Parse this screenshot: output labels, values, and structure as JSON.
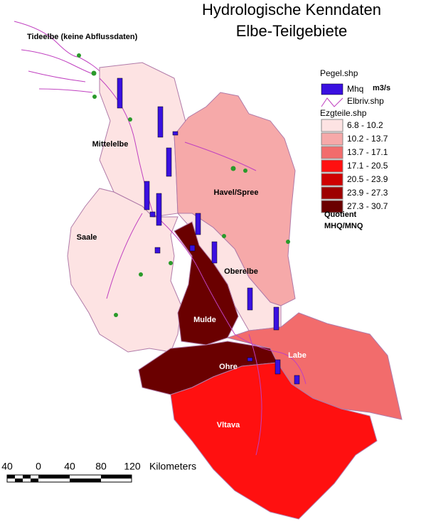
{
  "title": [
    "Hydrologische Kenndaten",
    "Elbe-Teilgebiete"
  ],
  "legend": {
    "gauges_layer": "Pegel.shp",
    "gauges_symbol": "Mhq",
    "gauges_unit": "m3/s",
    "rivers_layer": "Elbriv.shp",
    "areas_layer": "Ezgteile.shp",
    "classes": [
      {
        "label": "6.8 - 10.2",
        "color": "#fde3e3"
      },
      {
        "label": "10.2 - 13.7",
        "color": "#f6a9a9"
      },
      {
        "label": "13.7 - 17.1",
        "color": "#f26c6c"
      },
      {
        "label": "17.1 - 20.5",
        "color": "#ff1010"
      },
      {
        "label": "20.5 - 23.9",
        "color": "#cf0000"
      },
      {
        "label": "23.9 - 27.3",
        "color": "#9e0000"
      },
      {
        "label": "27.3 - 30.7",
        "color": "#6a0000"
      }
    ],
    "quantity": [
      "Quotient",
      "MHQ/MNQ"
    ]
  },
  "regions": [
    {
      "label": "Tideelbe  (keine Abflussdaten)"
    },
    {
      "label": "Mittelelbe",
      "color": "#fde3e3"
    },
    {
      "label": "Havel/Spree",
      "color": "#f6a9a9"
    },
    {
      "label": "Saale",
      "color": "#fde3e3"
    },
    {
      "label": "Oberelbe",
      "color": "#fde3e3"
    },
    {
      "label": "Mulde",
      "color": "#6a0000"
    },
    {
      "label": "Ohre",
      "color": "#6a0000"
    },
    {
      "label": "Labe",
      "color": "#f26c6c"
    },
    {
      "label": "Vltava",
      "color": "#ff1010"
    }
  ],
  "scale_bar": {
    "labels": [
      "40",
      "0",
      "40",
      "80",
      "120"
    ],
    "unit": "Kilometers"
  }
}
